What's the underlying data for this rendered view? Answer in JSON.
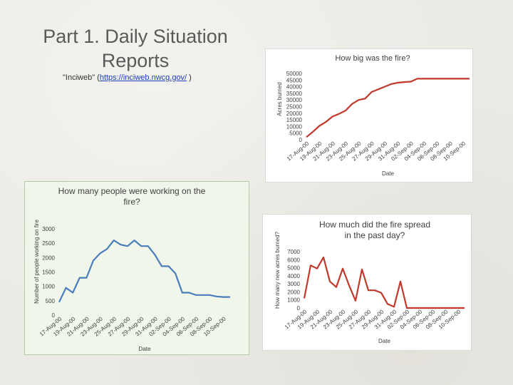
{
  "slide": {
    "title": "Part 1. Daily Situation Reports",
    "subtitle_prefix": "\"Inciweb\" (",
    "subtitle_link": "https://inciweb.nwcg.gov/",
    "subtitle_suffix": " )"
  },
  "chart_data": [
    {
      "id": "size",
      "type": "line",
      "title": "How big was the fire?",
      "xlabel": "Date",
      "ylabel": "Acres burned",
      "ylim": [
        0,
        50000
      ],
      "yticks": [
        0,
        5000,
        10000,
        15000,
        20000,
        25000,
        30000,
        35000,
        40000,
        45000,
        50000
      ],
      "line_color": "#c0392b",
      "x": [
        "17-Aug-00",
        "18-Aug-00",
        "19-Aug-00",
        "20-Aug-00",
        "21-Aug-00",
        "22-Aug-00",
        "23-Aug-00",
        "24-Aug-00",
        "25-Aug-00",
        "26-Aug-00",
        "27-Aug-00",
        "28-Aug-00",
        "29-Aug-00",
        "30-Aug-00",
        "31-Aug-00",
        "01-Sep-00",
        "02-Sep-00",
        "03-Sep-00",
        "04-Sep-00",
        "05-Sep-00",
        "06-Sep-00",
        "07-Sep-00",
        "08-Sep-00",
        "09-Sep-00",
        "10-Sep-00",
        "11-Sep-00"
      ],
      "xticks": [
        "17-Aug-00",
        "19-Aug-00",
        "21-Aug-00",
        "23-Aug-00",
        "25-Aug-00",
        "27-Aug-00",
        "29-Aug-00",
        "31-Aug-00",
        "02-Sep-00",
        "04-Sep-00",
        "06-Sep-00",
        "08-Sep-00",
        "10-Sep-00"
      ],
      "values": [
        2000,
        6000,
        10500,
        13500,
        17500,
        19500,
        22000,
        27000,
        30000,
        31000,
        36000,
        38000,
        40000,
        42000,
        43000,
        43500,
        43800,
        46000,
        46000,
        46000,
        46000,
        46000,
        46000,
        46000,
        46000,
        46000
      ]
    },
    {
      "id": "workers",
      "type": "line",
      "title": "How many people were working on the fire?",
      "xlabel": "Date",
      "ylabel": "Number of people working on fire",
      "ylim": [
        0,
        3000
      ],
      "yticks": [
        0,
        500,
        1000,
        1500,
        2000,
        2500,
        3000
      ],
      "line_color": "#4a7ebb",
      "x": [
        "17-Aug-00",
        "18-Aug-00",
        "19-Aug-00",
        "20-Aug-00",
        "21-Aug-00",
        "22-Aug-00",
        "23-Aug-00",
        "24-Aug-00",
        "25-Aug-00",
        "26-Aug-00",
        "27-Aug-00",
        "28-Aug-00",
        "29-Aug-00",
        "30-Aug-00",
        "31-Aug-00",
        "01-Sep-00",
        "02-Sep-00",
        "03-Sep-00",
        "04-Sep-00",
        "05-Sep-00",
        "06-Sep-00",
        "07-Sep-00",
        "08-Sep-00",
        "09-Sep-00",
        "10-Sep-00",
        "11-Sep-00"
      ],
      "xticks": [
        "17-Aug-00",
        "19-Aug-00",
        "21-Aug-00",
        "23-Aug-00",
        "25-Aug-00",
        "27-Aug-00",
        "29-Aug-00",
        "31-Aug-00",
        "02-Sep-00",
        "04-Sep-00",
        "06-Sep-00",
        "08-Sep-00",
        "10-Sep-00"
      ],
      "values": [
        450,
        950,
        780,
        1300,
        1300,
        1900,
        2150,
        2300,
        2600,
        2450,
        2400,
        2600,
        2400,
        2400,
        2100,
        1700,
        1700,
        1450,
        780,
        780,
        700,
        700,
        700,
        650,
        630,
        630
      ]
    },
    {
      "id": "spread",
      "type": "line",
      "title": "How much did the fire spread in the past day?",
      "xlabel": "Date",
      "ylabel": "How many new acres burned?",
      "ylim": [
        0,
        7000
      ],
      "yticks": [
        0,
        1000,
        2000,
        3000,
        4000,
        5000,
        6000,
        7000
      ],
      "line_color": "#c0392b",
      "x": [
        "17-Aug-00",
        "18-Aug-00",
        "19-Aug-00",
        "20-Aug-00",
        "21-Aug-00",
        "22-Aug-00",
        "23-Aug-00",
        "24-Aug-00",
        "25-Aug-00",
        "26-Aug-00",
        "27-Aug-00",
        "28-Aug-00",
        "29-Aug-00",
        "30-Aug-00",
        "31-Aug-00",
        "01-Sep-00",
        "02-Sep-00",
        "03-Sep-00",
        "04-Sep-00",
        "05-Sep-00",
        "06-Sep-00",
        "07-Sep-00",
        "08-Sep-00",
        "09-Sep-00",
        "10-Sep-00",
        "11-Sep-00"
      ],
      "xticks": [
        "17-Aug-00",
        "19-Aug-00",
        "21-Aug-00",
        "23-Aug-00",
        "25-Aug-00",
        "27-Aug-00",
        "29-Aug-00",
        "31-Aug-00",
        "02-Sep-00",
        "04-Sep-00",
        "06-Sep-00",
        "08-Sep-00",
        "10-Sep-00"
      ],
      "values": [
        1200,
        5300,
        4900,
        6300,
        3300,
        2600,
        4900,
        2800,
        900,
        4800,
        2200,
        2200,
        1900,
        500,
        150,
        3300,
        0,
        0,
        0,
        0,
        0,
        0,
        0,
        0,
        0,
        0
      ]
    }
  ]
}
